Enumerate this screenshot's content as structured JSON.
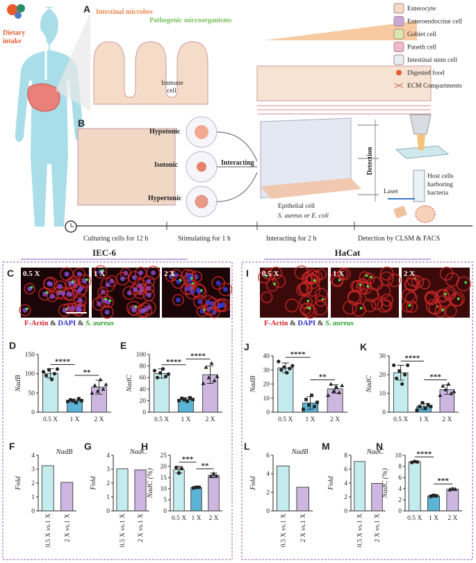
{
  "diagram": {
    "panel_a": "A",
    "panel_b": "B",
    "dietary_intake": [
      "Dietary",
      "intake"
    ],
    "intestinal_microbes": "Intestinal microbes",
    "pathogenic": "Pathogenic microorganisms",
    "immune_cell": [
      "Immune",
      "cell"
    ],
    "legend": [
      "Enterocyte",
      "Enteroendocrine cell",
      "Goblet cell",
      "Paneth cell",
      "Intestinal stem cell",
      "Digested food",
      "ECM Compartments"
    ],
    "conditions": [
      "Hypotonic",
      "Isotonic",
      "Hypertonic"
    ],
    "interacting": "Interacting",
    "detection": "Detection",
    "epithelial_cell": "Epithelial cell",
    "bacteria": "S. aureus or E. coli",
    "laser": "Laser",
    "host_cells": [
      "Host cells",
      "harboring",
      "bacteria"
    ],
    "timeline": [
      "Culturing cells for 12 h",
      "Stimulating for 1 h",
      "Interacting for 2 h",
      "Detection by CLSM & FACS"
    ]
  },
  "groups": [
    {
      "name": "IEC-6",
      "panel": "C",
      "images": [
        "0.5 X",
        "1 X",
        "2 X"
      ]
    },
    {
      "name": "HaCat",
      "panel": "I",
      "images": [
        "0.5 X",
        "1 X",
        "2 X"
      ]
    }
  ],
  "stain_caption": [
    "F-Actin",
    " & ",
    "DAPI",
    " & ",
    "S. aureus"
  ],
  "chart_data": [
    {
      "type": "bar",
      "panel": "D",
      "ylabel": "NadB",
      "categories": [
        "0.5 X",
        "1 X",
        "2 X"
      ],
      "colors": [
        "#c4ecee",
        "#5bb3d5",
        "#cdb7e0"
      ],
      "values": [
        101,
        30,
        65
      ],
      "errors": [
        12,
        4,
        18
      ],
      "points": [
        [
          105,
          95,
          110,
          85,
          100,
          112
        ],
        [
          28,
          32,
          30,
          25,
          35,
          30
        ],
        [
          50,
          70,
          55,
          85,
          60,
          72
        ]
      ],
      "ylim": [
        0,
        150
      ],
      "yticks": [
        0,
        50,
        100,
        150
      ],
      "significance": [
        {
          "label": "****",
          "between": [
            "0.5 X",
            "1 X"
          ]
        },
        {
          "label": "**",
          "between": [
            "1 X",
            "2 X"
          ]
        }
      ]
    },
    {
      "type": "bar",
      "panel": "E",
      "ylabel": "NadC",
      "categories": [
        "0.5 X",
        "1 X",
        "2 X"
      ],
      "colors": [
        "#c4ecee",
        "#5bb3d5",
        "#cdb7e0"
      ],
      "values": [
        67,
        22,
        65
      ],
      "errors": [
        8,
        3,
        15
      ],
      "points": [
        [
          72,
          60,
          68,
          75,
          62,
          66
        ],
        [
          20,
          24,
          22,
          19,
          25,
          22
        ],
        [
          50,
          78,
          60,
          85,
          55,
          62
        ]
      ],
      "ylim": [
        0,
        100
      ],
      "yticks": [
        0,
        20,
        40,
        60,
        80,
        100
      ],
      "significance": [
        {
          "label": "****",
          "between": [
            "0.5 X",
            "1 X"
          ]
        },
        {
          "label": "****",
          "between": [
            "1 X",
            "2 X"
          ]
        }
      ]
    },
    {
      "type": "bar",
      "panel": "F",
      "title": "NadB",
      "ylabel": "Fold",
      "categories": [
        "0.5 X vs.1 X",
        "2 X vs.1 X"
      ],
      "colors": [
        "#c4ecee",
        "#cdb7e0"
      ],
      "values": [
        3.25,
        2.05
      ],
      "ylim": [
        0,
        4
      ],
      "yticks": [
        0,
        1,
        2,
        3,
        4
      ]
    },
    {
      "type": "bar",
      "panel": "G",
      "title": "NadC",
      "ylabel": "Fold",
      "categories": [
        "0.5 X vs.1 X",
        "2 X vs.1 X"
      ],
      "colors": [
        "#c4ecee",
        "#cdb7e0"
      ],
      "values": [
        3.02,
        2.95
      ],
      "ylim": [
        0,
        4
      ],
      "yticks": [
        0,
        1,
        2,
        3,
        4
      ]
    },
    {
      "type": "bar",
      "panel": "H",
      "ylabel": "NadC (%)",
      "categories": [
        "0.5 X",
        "1 X",
        "2 X"
      ],
      "colors": [
        "#c4ecee",
        "#5bb3d5",
        "#cdb7e0"
      ],
      "values": [
        18.5,
        10.5,
        16
      ],
      "errors": [
        1.5,
        0.4,
        1
      ],
      "points": [
        [
          19.5,
          17,
          19
        ],
        [
          10.3,
          10.6,
          10.6
        ],
        [
          15.5,
          16.8,
          15.7
        ]
      ],
      "ylim": [
        0,
        25
      ],
      "yticks": [
        0,
        5,
        10,
        15,
        20,
        25
      ],
      "significance": [
        {
          "label": "***",
          "between": [
            "0.5 X",
            "1 X"
          ]
        },
        {
          "label": "**",
          "between": [
            "1 X",
            "2 X"
          ]
        }
      ]
    },
    {
      "type": "bar",
      "panel": "J",
      "ylabel": "NadB",
      "categories": [
        "0.5 X",
        "1 X",
        "2 X"
      ],
      "colors": [
        "#c4ecee",
        "#5bb3d5",
        "#cdb7e0"
      ],
      "values": [
        31.5,
        6.5,
        16.5
      ],
      "errors": [
        3.5,
        4.5,
        3
      ],
      "points": [
        [
          36,
          30,
          32,
          28,
          31,
          33
        ],
        [
          2,
          9,
          5,
          12,
          4,
          7
        ],
        [
          12,
          20,
          15,
          18,
          14,
          19
        ]
      ],
      "ylim": [
        0,
        40
      ],
      "yticks": [
        0,
        10,
        20,
        30,
        40
      ],
      "significance": [
        {
          "label": "****",
          "between": [
            "0.5 X",
            "1 X"
          ]
        },
        {
          "label": "**",
          "between": [
            "1 X",
            "2 X"
          ]
        }
      ]
    },
    {
      "type": "bar",
      "panel": "K",
      "ylabel": "NadC",
      "categories": [
        "0.5 X",
        "1 X",
        "2 X"
      ],
      "colors": [
        "#c4ecee",
        "#5bb3d5",
        "#cdb7e0"
      ],
      "values": [
        21,
        3,
        12
      ],
      "errors": [
        4,
        1.5,
        2.5
      ],
      "points": [
        [
          25,
          18,
          22,
          15,
          20,
          25
        ],
        [
          1,
          3,
          5,
          2,
          4,
          3
        ],
        [
          9,
          14,
          12,
          15,
          10,
          11
        ]
      ],
      "ylim": [
        0,
        30
      ],
      "yticks": [
        0,
        10,
        20,
        30
      ],
      "significance": [
        {
          "label": "****",
          "between": [
            "0.5 X",
            "1 X"
          ]
        },
        {
          "label": "***",
          "between": [
            "1 X",
            "2 X"
          ]
        }
      ]
    },
    {
      "type": "bar",
      "panel": "L",
      "title": "NadB",
      "ylabel": "Fold",
      "categories": [
        "0.5 X vs.1 X",
        "2 X vs.1 X"
      ],
      "colors": [
        "#c4ecee",
        "#cdb7e0"
      ],
      "values": [
        4.85,
        2.55
      ],
      "ylim": [
        0,
        6
      ],
      "yticks": [
        0,
        2,
        4,
        6
      ]
    },
    {
      "type": "bar",
      "panel": "M",
      "title": "NadC",
      "ylabel": "Fold",
      "categories": [
        "0.5 X vs.1 X",
        "2 X vs.1 X"
      ],
      "colors": [
        "#c4ecee",
        "#cdb7e0"
      ],
      "values": [
        7.1,
        3.95
      ],
      "ylim": [
        0,
        8
      ],
      "yticks": [
        0,
        2,
        4,
        6,
        8
      ]
    },
    {
      "type": "bar",
      "panel": "N",
      "ylabel": "NadC (%)",
      "categories": [
        "0.5 X",
        "1 X",
        "2 X"
      ],
      "colors": [
        "#c4ecee",
        "#5bb3d5",
        "#cdb7e0"
      ],
      "values": [
        8.8,
        2.7,
        3.9
      ],
      "errors": [
        0.15,
        0.2,
        0.2
      ],
      "points": [
        [
          8.7,
          8.9,
          8.8
        ],
        [
          2.6,
          2.8,
          2.7
        ],
        [
          3.8,
          4.0,
          3.9
        ]
      ],
      "ylim": [
        0,
        10
      ],
      "yticks": [
        0,
        2,
        4,
        6,
        8,
        10
      ],
      "significance": [
        {
          "label": "****",
          "between": [
            "0.5 X",
            "1 X"
          ]
        },
        {
          "label": "***",
          "between": [
            "1 X",
            "2 X"
          ]
        }
      ]
    }
  ]
}
